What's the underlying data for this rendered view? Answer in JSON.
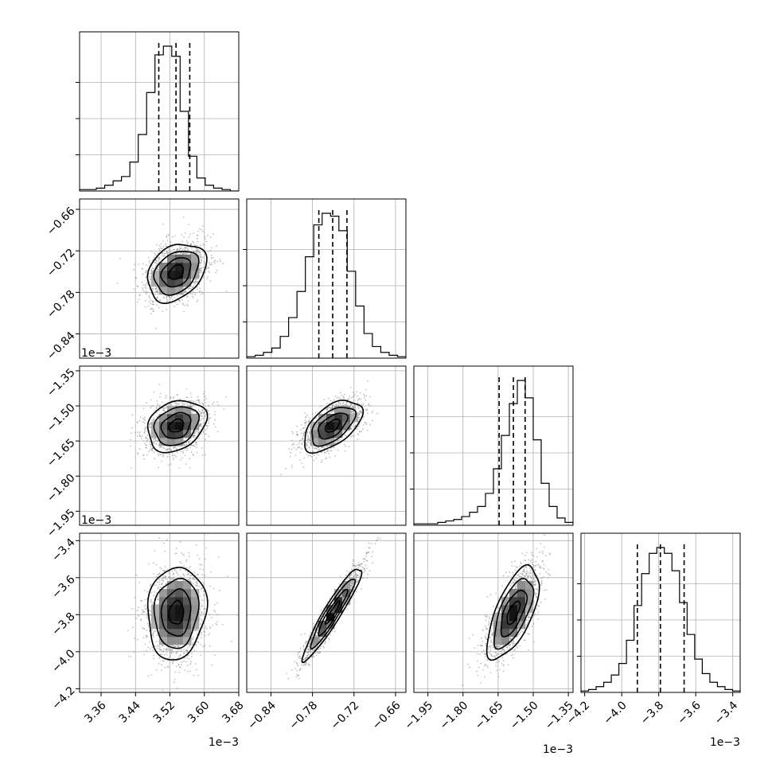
{
  "chart_data": {
    "type": "corner",
    "colors": {
      "hist": "#000000",
      "grid": "#b0b0b0",
      "scatter": "#8c8c8c",
      "quantile": "#000000"
    },
    "grid": true,
    "quantile_lines": "dashed",
    "params": [
      {
        "range": [
          3.31,
          3.68
        ],
        "ticks": [
          3.36,
          3.44,
          3.52,
          3.6,
          3.68
        ],
        "tick_labels": [
          "3.36",
          "3.44",
          "3.52",
          "3.60",
          "3.68"
        ],
        "offset_label": "1e−3",
        "quantiles": [
          3.4941,
          3.5341,
          3.5661
        ],
        "center": 3.535,
        "sigma": 0.034,
        "hist_bins": [
          1,
          1,
          2,
          4,
          7,
          10,
          20,
          39,
          68,
          94,
          100,
          93,
          55,
          24,
          9,
          4,
          2,
          1,
          0
        ]
      },
      {
        "range": [
          -0.875,
          -0.645
        ],
        "ticks": [
          -0.84,
          -0.78,
          -0.72,
          -0.66
        ],
        "tick_labels": [
          "−0.84",
          "−0.78",
          "−0.72",
          "−0.66"
        ],
        "offset_label": "1e−3",
        "quantiles": [
          -0.7708,
          -0.7508,
          -0.7302
        ],
        "center": -0.751,
        "sigma": 0.021,
        "hist_bins": [
          1,
          2,
          4,
          7,
          15,
          28,
          46,
          70,
          92,
          100,
          98,
          88,
          60,
          36,
          17,
          8,
          4,
          2,
          1
        ]
      },
      {
        "range": [
          -2.01,
          -1.33
        ],
        "ticks": [
          -1.95,
          -1.8,
          -1.65,
          -1.5,
          -1.35
        ],
        "tick_labels": [
          "−1.95",
          "−1.80",
          "−1.65",
          "−1.50",
          "−1.35"
        ],
        "offset_label": "1e−3",
        "quantiles": [
          -1.6457,
          -1.5848,
          -1.5347
        ],
        "center": -1.585,
        "sigma": 0.055,
        "hist_bins": [
          1,
          1,
          1,
          2,
          3,
          4,
          6,
          9,
          13,
          22,
          39,
          62,
          84,
          100,
          88,
          59,
          29,
          13,
          5,
          2
        ]
      },
      {
        "range": [
          -4.22,
          -3.36
        ],
        "ticks": [
          -4.2,
          -4.0,
          -3.8,
          -3.6,
          -3.4
        ],
        "tick_labels": [
          "−4.2",
          "−4.0",
          "−3.8",
          "−3.6",
          "−3.4"
        ],
        "offset_label": "1e−3",
        "quantiles": [
          -3.9156,
          -3.791,
          -3.6628
        ],
        "center": -3.79,
        "sigma": 0.125,
        "hist_bins": [
          1,
          2,
          4,
          7,
          12,
          20,
          36,
          60,
          82,
          96,
          100,
          96,
          84,
          62,
          40,
          23,
          13,
          7,
          4,
          2,
          1
        ]
      }
    ],
    "pairs": [
      {
        "x": 0,
        "y": 1,
        "corr": 0.3,
        "offset": [
          0,
          0
        ]
      },
      {
        "x": 0,
        "y": 2,
        "corr": 0.25,
        "offset": [
          0,
          0
        ]
      },
      {
        "x": 1,
        "y": 2,
        "corr": 0.55,
        "offset": [
          0,
          0
        ]
      },
      {
        "x": 0,
        "y": 3,
        "corr": 0.1,
        "offset": [
          0,
          0
        ]
      },
      {
        "x": 1,
        "y": 3,
        "corr": 0.94,
        "offset": [
          0,
          0
        ]
      },
      {
        "x": 2,
        "y": 3,
        "corr": 0.65,
        "offset": [
          0,
          0
        ]
      }
    ],
    "contour_levels_sigma": [
      0.5,
      1.0,
      1.5,
      2.0
    ]
  }
}
